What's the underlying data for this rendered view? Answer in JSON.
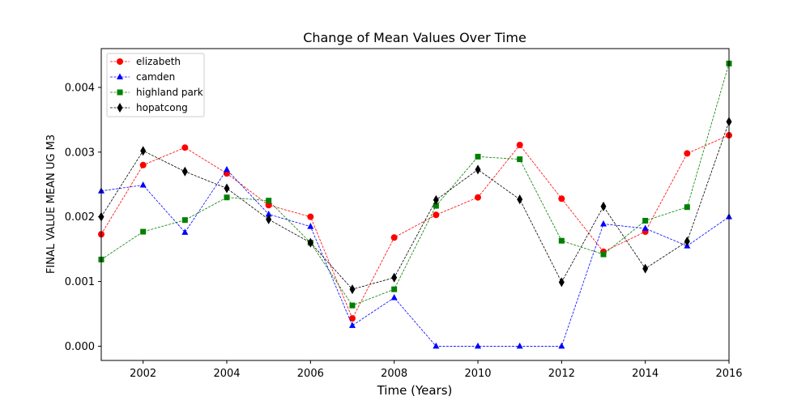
{
  "chart_data": {
    "type": "line",
    "title": "Change of Mean Values Over Time",
    "xlabel": "Time (Years)",
    "ylabel": "FINAL VALUE MEAN UG M3",
    "x": [
      2001,
      2002,
      2003,
      2004,
      2005,
      2006,
      2007,
      2008,
      2009,
      2010,
      2011,
      2012,
      2013,
      2014,
      2015,
      2016
    ],
    "xlim": [
      2001,
      2016
    ],
    "ylim": [
      -0.00022,
      0.0046
    ],
    "x_ticks": [
      "2002",
      "2004",
      "2006",
      "2008",
      "2010",
      "2012",
      "2014",
      "2016"
    ],
    "y_ticks": [
      "0.000",
      "0.001",
      "0.002",
      "0.003",
      "0.004"
    ],
    "grid": false,
    "legend_position": "top-left",
    "series": [
      {
        "name": "elizabeth",
        "color": "#ff0000",
        "marker": "circle",
        "values": [
          0.00173,
          0.0028,
          0.00307,
          0.00267,
          0.00218,
          0.002,
          0.00043,
          0.00168,
          0.00203,
          0.0023,
          0.00311,
          0.00228,
          0.00146,
          0.00177,
          0.00298,
          0.00326
        ]
      },
      {
        "name": "camden",
        "color": "#0000ff",
        "marker": "triangle",
        "values": [
          0.0024,
          0.00249,
          0.00176,
          0.00273,
          0.00204,
          0.00185,
          0.00032,
          0.00075,
          0.0,
          0.0,
          0.0,
          0.0,
          0.00189,
          0.00182,
          0.00155,
          0.002
        ]
      },
      {
        "name": "highland park",
        "color": "#008000",
        "marker": "square",
        "values": [
          0.00134,
          0.00177,
          0.00195,
          0.0023,
          0.00225,
          0.0016,
          0.00063,
          0.00088,
          0.00217,
          0.00293,
          0.00289,
          0.00163,
          0.00142,
          0.00194,
          0.00215,
          0.00437
        ]
      },
      {
        "name": "hopatcong",
        "color": "#000000",
        "marker": "thin-diamond",
        "values": [
          0.002,
          0.00302,
          0.0027,
          0.00244,
          0.00196,
          0.0016,
          0.00088,
          0.00106,
          0.00226,
          0.00273,
          0.00227,
          0.00099,
          0.00216,
          0.0012,
          0.00162,
          0.00347
        ]
      }
    ]
  }
}
